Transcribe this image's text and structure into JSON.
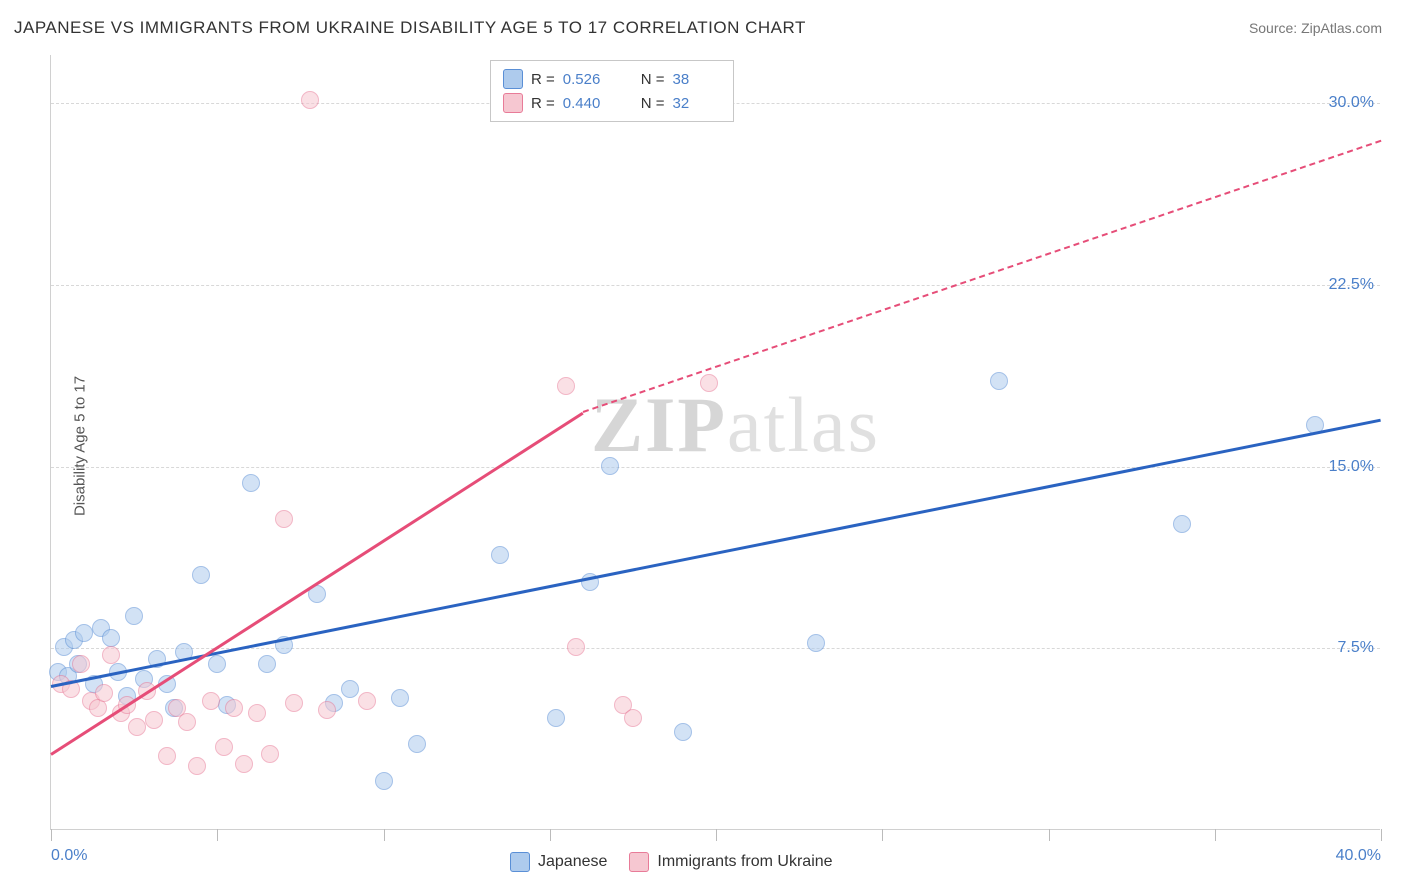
{
  "title": "JAPANESE VS IMMIGRANTS FROM UKRAINE DISABILITY AGE 5 TO 17 CORRELATION CHART",
  "source": "Source: ZipAtlas.com",
  "ylabel": "Disability Age 5 to 17",
  "watermark_bold": "ZIP",
  "watermark_rest": "atlas",
  "chart": {
    "type": "scatter",
    "background_color": "#ffffff",
    "grid_color": "#d8d8d8",
    "axis_color": "#d0d0d0",
    "label_color": "#4a7fc9",
    "text_color": "#333333",
    "xlim": [
      0,
      40
    ],
    "ylim": [
      0,
      32
    ],
    "yticks": [
      7.5,
      15.0,
      22.5,
      30.0
    ],
    "ytick_labels": [
      "7.5%",
      "15.0%",
      "22.5%",
      "30.0%"
    ],
    "xtick_majors": [
      0,
      5,
      10,
      15,
      20,
      25,
      30,
      35,
      40
    ],
    "xmin_label": "0.0%",
    "xmax_label": "40.0%",
    "point_radius": 9,
    "point_opacity": 0.55,
    "series": [
      {
        "name": "Japanese",
        "fill": "#aecbed",
        "stroke": "#5a8fd6",
        "trend_color": "#2a63c1",
        "r": 0.526,
        "n": 38,
        "trend": {
          "x1": 0,
          "y1": 6.0,
          "x2": 40,
          "y2": 17.0
        },
        "points": [
          [
            0.2,
            6.5
          ],
          [
            0.4,
            7.5
          ],
          [
            0.5,
            6.3
          ],
          [
            0.7,
            7.8
          ],
          [
            0.8,
            6.8
          ],
          [
            1.0,
            8.1
          ],
          [
            1.3,
            6.0
          ],
          [
            1.5,
            8.3
          ],
          [
            1.8,
            7.9
          ],
          [
            2.0,
            6.5
          ],
          [
            2.3,
            5.5
          ],
          [
            2.5,
            8.8
          ],
          [
            2.8,
            6.2
          ],
          [
            3.2,
            7.0
          ],
          [
            3.5,
            6.0
          ],
          [
            3.7,
            5.0
          ],
          [
            4.0,
            7.3
          ],
          [
            4.5,
            10.5
          ],
          [
            5.0,
            6.8
          ],
          [
            5.3,
            5.1
          ],
          [
            6.0,
            14.3
          ],
          [
            6.5,
            6.8
          ],
          [
            7.0,
            7.6
          ],
          [
            8.0,
            9.7
          ],
          [
            8.5,
            5.2
          ],
          [
            9.0,
            5.8
          ],
          [
            10.0,
            2.0
          ],
          [
            10.5,
            5.4
          ],
          [
            11.0,
            3.5
          ],
          [
            13.5,
            11.3
          ],
          [
            15.2,
            4.6
          ],
          [
            16.2,
            10.2
          ],
          [
            16.8,
            15.0
          ],
          [
            19.0,
            4.0
          ],
          [
            23.0,
            7.7
          ],
          [
            28.5,
            18.5
          ],
          [
            34.0,
            12.6
          ],
          [
            38.0,
            16.7
          ]
        ]
      },
      {
        "name": "Immigrants from Ukraine",
        "fill": "#f6c7d1",
        "stroke": "#e87b98",
        "trend_color": "#e64d78",
        "r": 0.44,
        "n": 32,
        "trend_solid": {
          "x1": 0,
          "y1": 3.2,
          "x2": 16,
          "y2": 17.3
        },
        "trend_dash": {
          "x1": 16,
          "y1": 17.3,
          "x2": 40,
          "y2": 28.5
        },
        "points": [
          [
            0.3,
            6.0
          ],
          [
            0.6,
            5.8
          ],
          [
            0.9,
            6.8
          ],
          [
            1.2,
            5.3
          ],
          [
            1.4,
            5.0
          ],
          [
            1.6,
            5.6
          ],
          [
            1.8,
            7.2
          ],
          [
            2.1,
            4.8
          ],
          [
            2.3,
            5.1
          ],
          [
            2.6,
            4.2
          ],
          [
            2.9,
            5.7
          ],
          [
            3.1,
            4.5
          ],
          [
            3.5,
            3.0
          ],
          [
            3.8,
            5.0
          ],
          [
            4.1,
            4.4
          ],
          [
            4.4,
            2.6
          ],
          [
            4.8,
            5.3
          ],
          [
            5.2,
            3.4
          ],
          [
            5.5,
            5.0
          ],
          [
            5.8,
            2.7
          ],
          [
            6.2,
            4.8
          ],
          [
            6.6,
            3.1
          ],
          [
            7.0,
            12.8
          ],
          [
            7.3,
            5.2
          ],
          [
            7.8,
            30.1
          ],
          [
            8.3,
            4.9
          ],
          [
            9.5,
            5.3
          ],
          [
            15.5,
            18.3
          ],
          [
            15.8,
            7.5
          ],
          [
            17.2,
            5.1
          ],
          [
            17.5,
            4.6
          ],
          [
            19.8,
            18.4
          ]
        ]
      }
    ]
  },
  "legend_top": {
    "items": [
      {
        "r_label": "R =",
        "n_label": "N ="
      },
      {
        "r_label": "R =",
        "n_label": "N ="
      }
    ]
  },
  "legend_bottom": {
    "items": [
      "Japanese",
      "Immigrants from Ukraine"
    ]
  }
}
